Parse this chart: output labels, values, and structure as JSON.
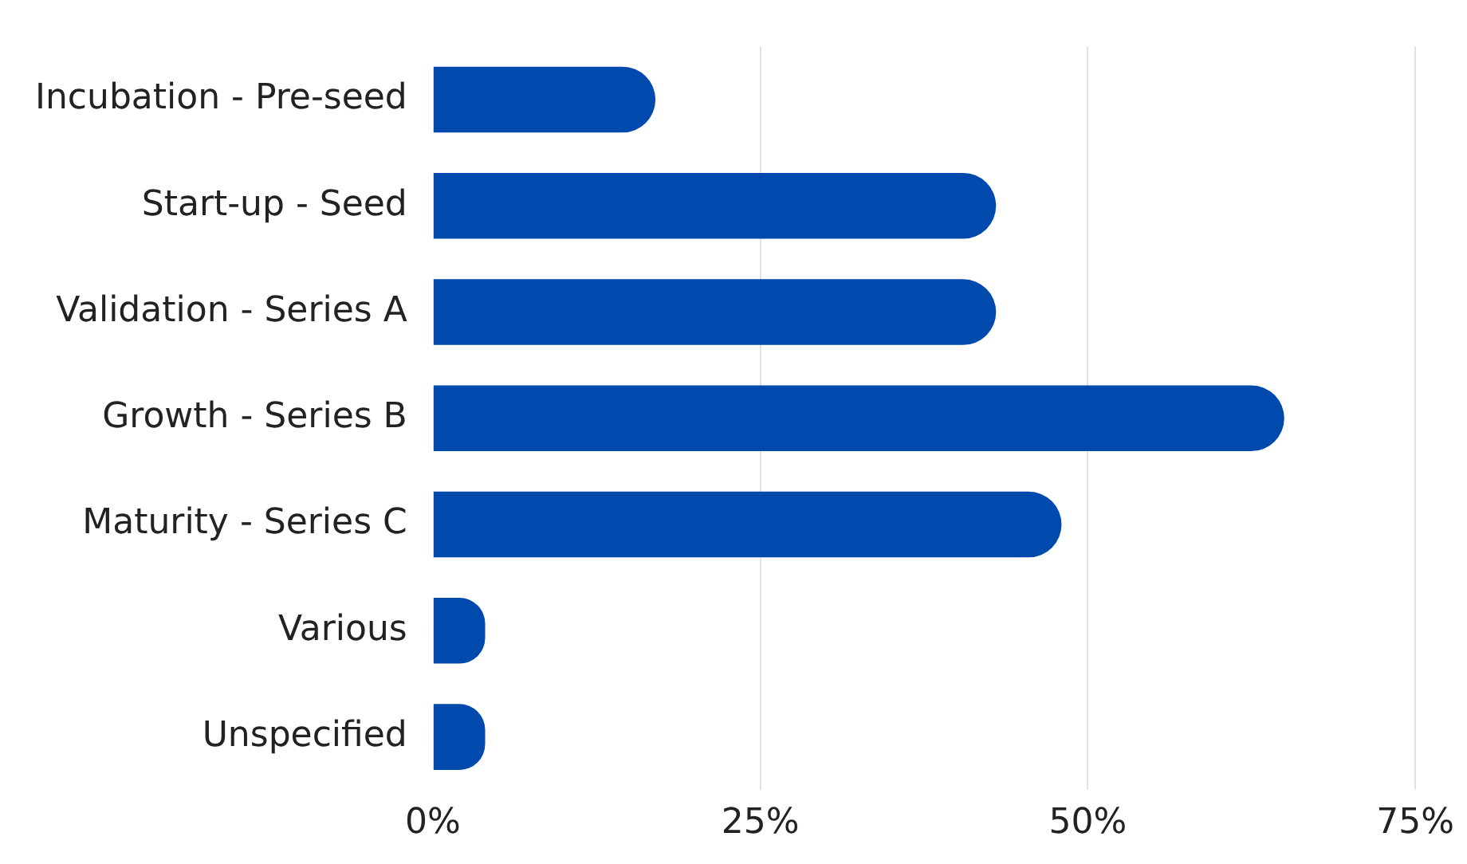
{
  "chart_data": {
    "type": "bar",
    "orientation": "horizontal",
    "categories": [
      "Incubation - Pre-seed",
      "Start-up - Seed",
      "Validation - Series A",
      "Growth - Series B",
      "Maturity - Series C",
      "Various",
      "Unspecified"
    ],
    "values": [
      17,
      43,
      43,
      65,
      48,
      4,
      4
    ],
    "color": "#014aad",
    "xlim": [
      0,
      75
    ],
    "xticks": [
      {
        "value": 0,
        "label": "0%"
      },
      {
        "value": 25,
        "label": "25%"
      },
      {
        "value": 50,
        "label": "50%"
      },
      {
        "value": 75,
        "label": "75%"
      }
    ],
    "grid": "x"
  }
}
